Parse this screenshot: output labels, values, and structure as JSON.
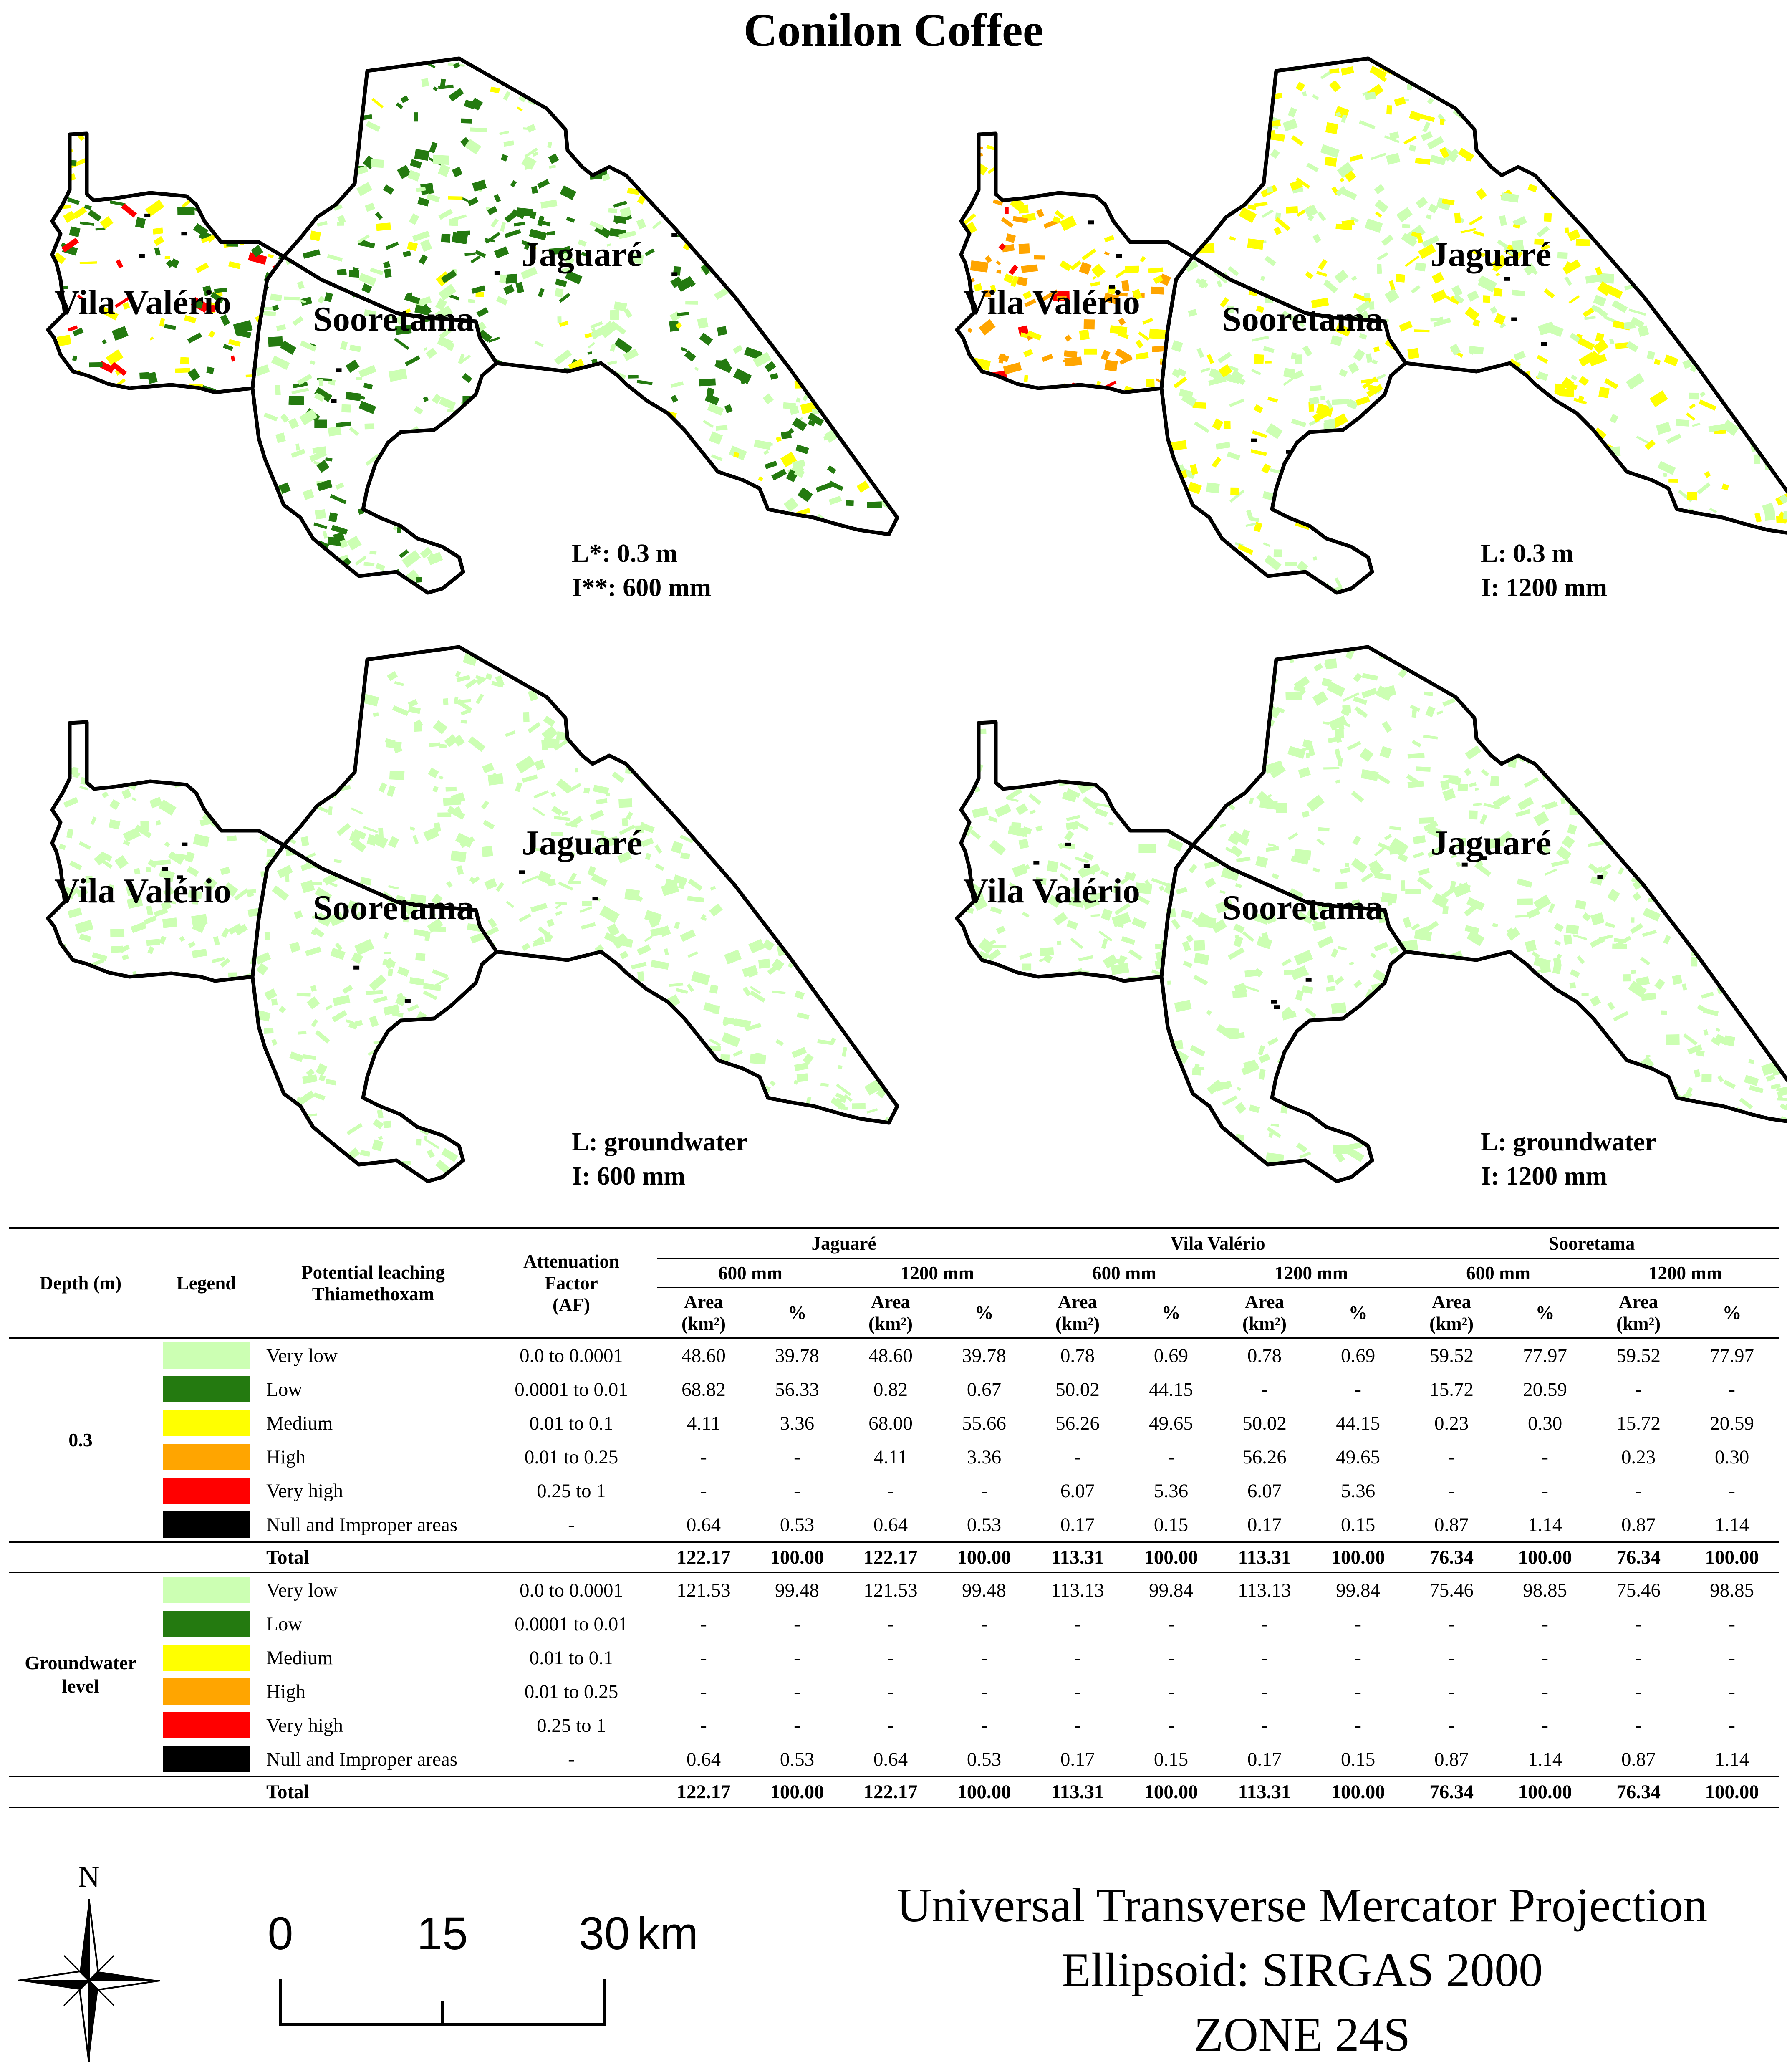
{
  "title": "Conilon Coffee",
  "colors": {
    "very_low": "#ccffb3",
    "low": "#247a10",
    "medium": "#ffff00",
    "high": "#ffa500",
    "very_high": "#ff0000",
    "null": "#000000"
  },
  "maps": [
    {
      "municipalities": {
        "vila_valerio": "Vila Valério",
        "sooretama": "Sooretama",
        "jaguare": "Jaguaré"
      },
      "layer": "L*: 0.3 m",
      "irrigation": "I**: 600 mm"
    },
    {
      "municipalities": {
        "vila_valerio": "Vila Valério",
        "sooretama": "Sooretama",
        "jaguare": "Jaguaré"
      },
      "layer": "L: 0.3 m",
      "irrigation": "I: 1200 mm"
    },
    {
      "municipalities": {
        "vila_valerio": "Vila Valério",
        "sooretama": "Sooretama",
        "jaguare": "Jaguaré"
      },
      "layer": "L: groundwater",
      "irrigation": "I: 600 mm"
    },
    {
      "municipalities": {
        "vila_valerio": "Vila Valério",
        "sooretama": "Sooretama",
        "jaguare": "Jaguaré"
      },
      "layer": "L: groundwater",
      "irrigation": "I: 1200 mm"
    }
  ],
  "table": {
    "headers": {
      "depth": "Depth (m)",
      "legend": "Legend",
      "potential_line1": "Potential leaching",
      "potential_line2": "Thiamethoxam",
      "af_line1": "Attenuation",
      "af_line2": "Factor",
      "af_line3": "(AF)",
      "area_line1": "Area",
      "area_line2": "(km²)",
      "pct": "%"
    },
    "municipalities": [
      "Jaguaré",
      "Vila Valério",
      "Sooretama"
    ],
    "irrigations": [
      "600 mm",
      "1200 mm"
    ],
    "sections": [
      {
        "depth_lines": [
          "0.3"
        ],
        "rows": [
          {
            "color": "#ccffb3",
            "cls": "Very low",
            "af": "0.0 to 0.0001",
            "values": [
              "48.60",
              "39.78",
              "48.60",
              "39.78",
              "0.78",
              "0.69",
              "0.78",
              "0.69",
              "59.52",
              "77.97",
              "59.52",
              "77.97"
            ]
          },
          {
            "color": "#247a10",
            "cls": "Low",
            "af": "0.0001 to 0.01",
            "values": [
              "68.82",
              "56.33",
              "0.82",
              "0.67",
              "50.02",
              "44.15",
              "-",
              "-",
              "15.72",
              "20.59",
              "-",
              "-"
            ]
          },
          {
            "color": "#ffff00",
            "cls": "Medium",
            "af": "0.01 to 0.1",
            "values": [
              "4.11",
              "3.36",
              "68.00",
              "55.66",
              "56.26",
              "49.65",
              "50.02",
              "44.15",
              "0.23",
              "0.30",
              "15.72",
              "20.59"
            ]
          },
          {
            "color": "#ffa500",
            "cls": "High",
            "af": "0.01 to 0.25",
            "values": [
              "-",
              "-",
              "4.11",
              "3.36",
              "-",
              "-",
              "56.26",
              "49.65",
              "-",
              "-",
              "0.23",
              "0.30"
            ]
          },
          {
            "color": "#ff0000",
            "cls": "Very high",
            "af": "0.25 to 1",
            "values": [
              "-",
              "-",
              "-",
              "-",
              "6.07",
              "5.36",
              "6.07",
              "5.36",
              "-",
              "-",
              "-",
              "-"
            ]
          },
          {
            "color": "#000000",
            "cls": "Null and Improper areas",
            "af": "-",
            "values": [
              "0.64",
              "0.53",
              "0.64",
              "0.53",
              "0.17",
              "0.15",
              "0.17",
              "0.15",
              "0.87",
              "1.14",
              "0.87",
              "1.14"
            ]
          }
        ],
        "total": {
          "label": "Total",
          "values": [
            "122.17",
            "100.00",
            "122.17",
            "100.00",
            "113.31",
            "100.00",
            "113.31",
            "100.00",
            "76.34",
            "100.00",
            "76.34",
            "100.00"
          ]
        }
      },
      {
        "depth_lines": [
          "Groundwater",
          "level"
        ],
        "rows": [
          {
            "color": "#ccffb3",
            "cls": "Very low",
            "af": "0.0 to 0.0001",
            "values": [
              "121.53",
              "99.48",
              "121.53",
              "99.48",
              "113.13",
              "99.84",
              "113.13",
              "99.84",
              "75.46",
              "98.85",
              "75.46",
              "98.85"
            ]
          },
          {
            "color": "#247a10",
            "cls": "Low",
            "af": "0.0001 to 0.01",
            "values": [
              "-",
              "-",
              "-",
              "-",
              "-",
              "-",
              "-",
              "-",
              "-",
              "-",
              "-",
              "-"
            ]
          },
          {
            "color": "#ffff00",
            "cls": "Medium",
            "af": "0.01 to 0.1",
            "values": [
              "-",
              "-",
              "-",
              "-",
              "-",
              "-",
              "-",
              "-",
              "-",
              "-",
              "-",
              "-"
            ]
          },
          {
            "color": "#ffa500",
            "cls": "High",
            "af": "0.01 to 0.25",
            "values": [
              "-",
              "-",
              "-",
              "-",
              "-",
              "-",
              "-",
              "-",
              "-",
              "-",
              "-",
              "-"
            ]
          },
          {
            "color": "#ff0000",
            "cls": "Very high",
            "af": "0.25 to 1",
            "values": [
              "-",
              "-",
              "-",
              "-",
              "-",
              "-",
              "-",
              "-",
              "-",
              "-",
              "-",
              "-"
            ]
          },
          {
            "color": "#000000",
            "cls": "Null and Improper areas",
            "af": "-",
            "values": [
              "0.64",
              "0.53",
              "0.64",
              "0.53",
              "0.17",
              "0.15",
              "0.17",
              "0.15",
              "0.87",
              "1.14",
              "0.87",
              "1.14"
            ]
          }
        ],
        "total": {
          "label": "Total",
          "values": [
            "122.17",
            "100.00",
            "122.17",
            "100.00",
            "113.31",
            "100.00",
            "113.31",
            "100.00",
            "76.34",
            "100.00",
            "76.34",
            "100.00"
          ]
        }
      }
    ]
  },
  "north_label": "N",
  "scale": {
    "ticks": [
      "0",
      "15",
      "30"
    ],
    "unit": "km"
  },
  "projection": {
    "line1": "Universal Transverse Mercator Projection",
    "line2": "Ellipsoid: SIRGAS 2000",
    "line3": "ZONE 24S"
  }
}
